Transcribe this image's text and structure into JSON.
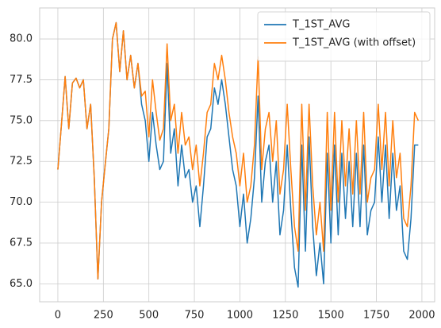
{
  "chart_data": {
    "type": "line",
    "x": [
      0,
      20,
      40,
      60,
      80,
      100,
      120,
      140,
      160,
      180,
      200,
      220,
      240,
      260,
      280,
      300,
      320,
      340,
      360,
      380,
      400,
      420,
      440,
      460,
      480,
      500,
      520,
      540,
      560,
      580,
      600,
      620,
      640,
      660,
      680,
      700,
      720,
      740,
      760,
      780,
      800,
      820,
      840,
      860,
      880,
      900,
      920,
      940,
      960,
      980,
      1000,
      1020,
      1040,
      1060,
      1080,
      1100,
      1120,
      1140,
      1160,
      1180,
      1200,
      1220,
      1240,
      1260,
      1280,
      1300,
      1320,
      1340,
      1360,
      1380,
      1400,
      1420,
      1440,
      1460,
      1480,
      1500,
      1520,
      1540,
      1560,
      1580,
      1600,
      1620,
      1640,
      1660,
      1680,
      1700,
      1720,
      1740,
      1760,
      1780,
      1800,
      1820,
      1840,
      1860,
      1880,
      1900,
      1920,
      1940,
      1960,
      1980
    ],
    "series": [
      {
        "name": "T_1ST_AVG",
        "color": "#1f77b4",
        "values": [
          72,
          74.8,
          77.7,
          74.5,
          77.3,
          77.6,
          77.0,
          77.5,
          74.5,
          76,
          71.5,
          65.3,
          70,
          72.3,
          74.5,
          80,
          81,
          78,
          80.5,
          77.5,
          79,
          77,
          78.5,
          76,
          75,
          72.5,
          75.5,
          73.5,
          72,
          72.5,
          78.5,
          73,
          74.5,
          71,
          73.5,
          71.5,
          72,
          70,
          71,
          68.5,
          71,
          74,
          74.5,
          77,
          76,
          77.5,
          76,
          74,
          72,
          71,
          68.5,
          70.5,
          67.5,
          69,
          71.5,
          76.5,
          70,
          72.5,
          73.5,
          70,
          72.5,
          68,
          69.5,
          73.5,
          69.5,
          66,
          64.8,
          73.5,
          67,
          74,
          68.5,
          65.5,
          67.5,
          65,
          73,
          67.5,
          73.5,
          68,
          73,
          69,
          72.5,
          68.5,
          73,
          68.5,
          73.5,
          68,
          69.5,
          70,
          74,
          70,
          73.5,
          69,
          73,
          69.5,
          71,
          67,
          66.5,
          69,
          73.5,
          73.5
        ]
      },
      {
        "name": "T_1ST_AVG (with offset)",
        "color": "#ff7f0e",
        "values": [
          72,
          74.8,
          77.7,
          74.5,
          77.3,
          77.6,
          77.0,
          77.5,
          74.5,
          76,
          71.5,
          65.3,
          70,
          72.3,
          74.5,
          80,
          81,
          78,
          80.5,
          77.5,
          79,
          77,
          78.5,
          76.5,
          76.8,
          74,
          77.5,
          75.5,
          73.8,
          74.5,
          79.7,
          75,
          76,
          73,
          75.5,
          73.5,
          74,
          72,
          73.5,
          71,
          73,
          75.5,
          76,
          78.5,
          77.5,
          79,
          77.5,
          75.5,
          74,
          73,
          71,
          73,
          70,
          71,
          73.5,
          78.9,
          72,
          74.5,
          75.5,
          72.5,
          75,
          70.5,
          72,
          76,
          72,
          68.5,
          67,
          76,
          69.5,
          76,
          71,
          68,
          70,
          67,
          75.5,
          69.5,
          75.5,
          70,
          75,
          71,
          74.5,
          70.5,
          75,
          70.5,
          75.5,
          70,
          71.5,
          72,
          76,
          72,
          75.5,
          71,
          75,
          71.5,
          73,
          69,
          68.5,
          71,
          75.5,
          75
        ]
      }
    ],
    "xlim": [
      -100,
      2070
    ],
    "ylim": [
      63.9,
      81.9
    ],
    "xticks": [
      0,
      250,
      500,
      750,
      1000,
      1250,
      1500,
      1750,
      2000
    ],
    "yticks": [
      {
        "value": 65,
        "label": "65.0"
      },
      67.5,
      {
        "value": 70,
        "label": "70.0"
      },
      72.5,
      {
        "value": 75,
        "label": "75.0"
      },
      77.5,
      {
        "value": 80,
        "label": "80.0"
      }
    ],
    "grid": true,
    "legend": "upper right"
  }
}
